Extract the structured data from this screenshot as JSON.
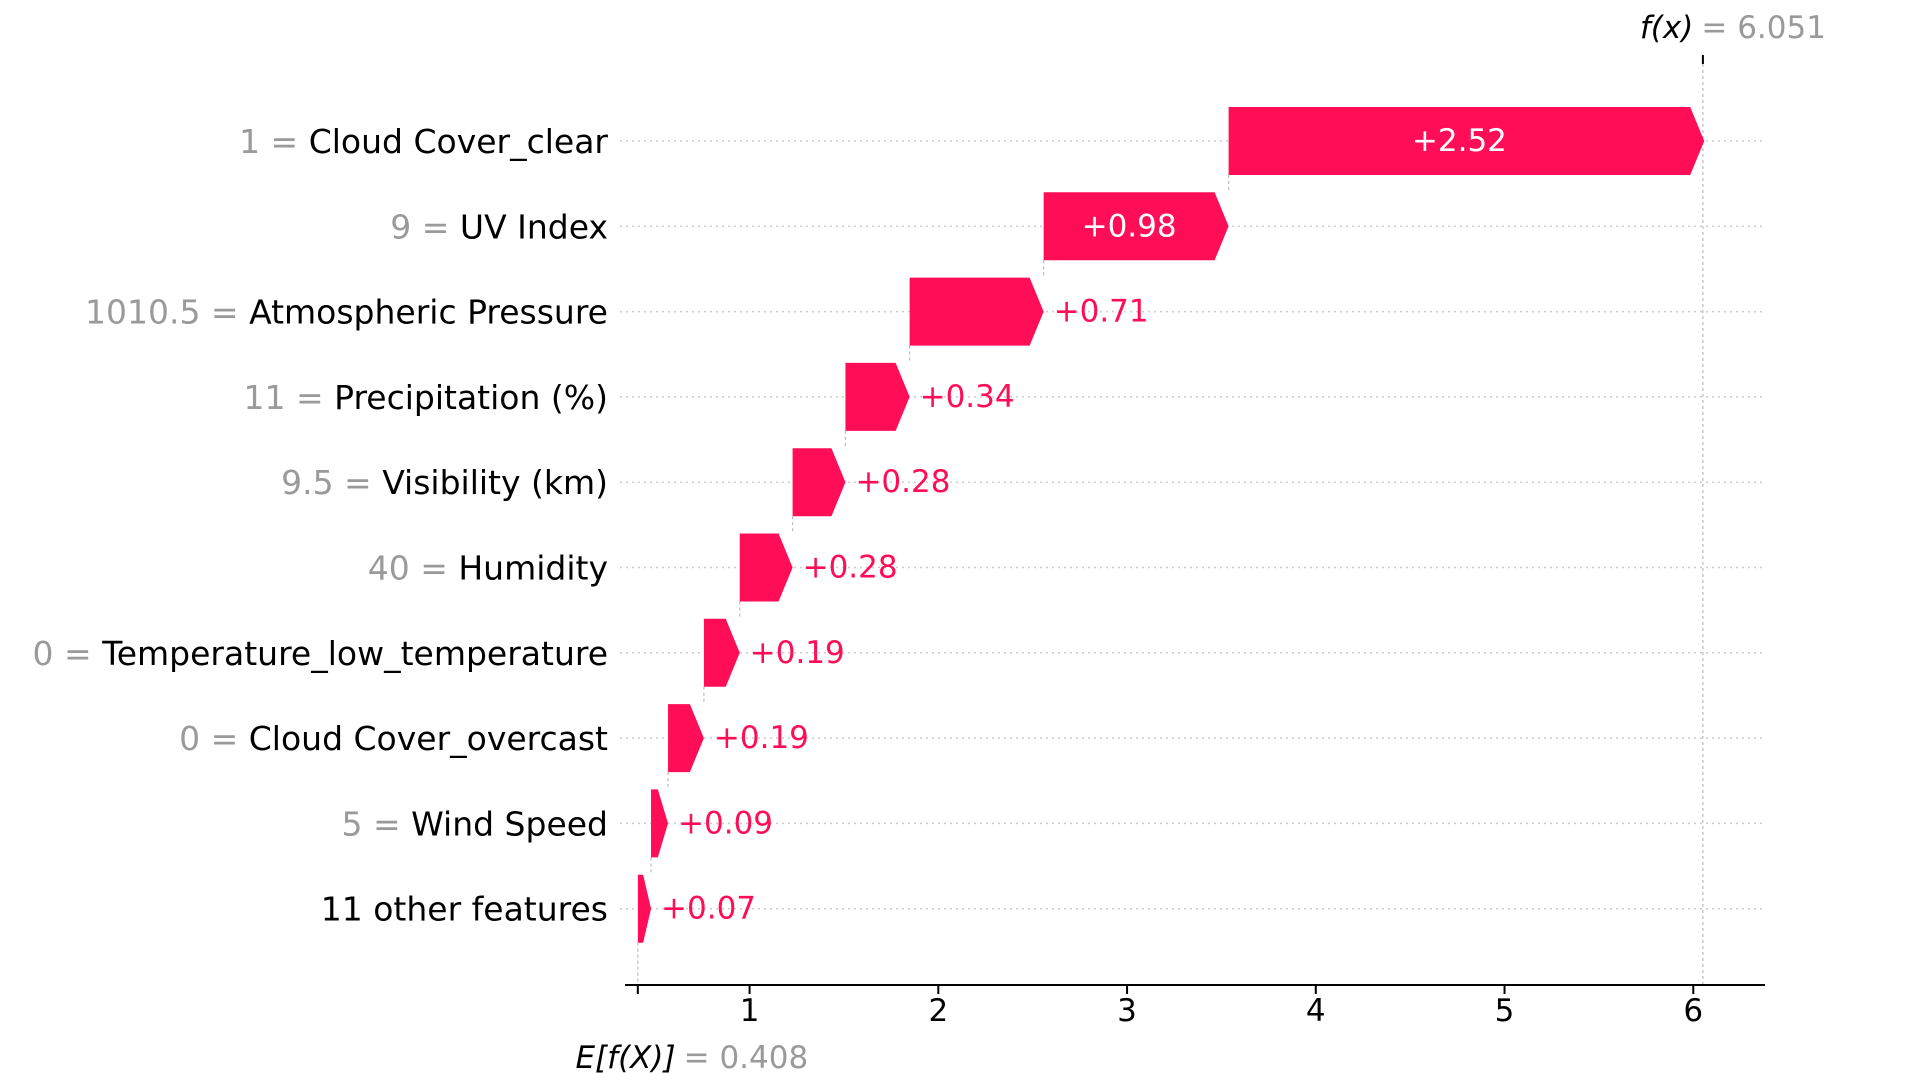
{
  "chart_data": {
    "type": "waterfall",
    "base_value": 0.408,
    "output_value": 6.051,
    "base_label": "E[f(X)]",
    "base_label_parts": [
      "E[",
      "f",
      "(",
      "X",
      ")]"
    ],
    "base_value_text": "= 0.408",
    "output_label": "f(x)",
    "output_label_parts": [
      "f",
      "(",
      "x",
      ")"
    ],
    "output_value_text": "= 6.051",
    "positive_color": "#ff0d57",
    "bar_label_inside_color": "#ffffff",
    "grid_color": "#cccccc",
    "xlim": [
      0.34,
      6.38
    ],
    "xticks": [
      1,
      2,
      3,
      4,
      5,
      6
    ],
    "xtick_labels": [
      "1",
      "2",
      "3",
      "4",
      "5",
      "6"
    ],
    "features": [
      {
        "value": "1",
        "name": "Cloud Cover_clear",
        "contribution": 2.52,
        "label": "+2.52"
      },
      {
        "value": "9",
        "name": "UV Index",
        "contribution": 0.98,
        "label": "+0.98"
      },
      {
        "value": "1010.5",
        "name": "Atmospheric Pressure",
        "contribution": 0.71,
        "label": "+0.71"
      },
      {
        "value": "11",
        "name": "Precipitation (%)",
        "contribution": 0.34,
        "label": "+0.34"
      },
      {
        "value": "9.5",
        "name": "Visibility (km)",
        "contribution": 0.28,
        "label": "+0.28"
      },
      {
        "value": "40",
        "name": "Humidity",
        "contribution": 0.28,
        "label": "+0.28"
      },
      {
        "value": "0",
        "name": "Temperature_low_temperature",
        "contribution": 0.19,
        "label": "+0.19"
      },
      {
        "value": "0",
        "name": "Cloud Cover_overcast",
        "contribution": 0.19,
        "label": "+0.19"
      },
      {
        "value": "5",
        "name": "Wind Speed",
        "contribution": 0.09,
        "label": "+0.09"
      },
      {
        "value": "",
        "name": "11 other features",
        "contribution": 0.07,
        "label": "+0.07"
      }
    ]
  }
}
